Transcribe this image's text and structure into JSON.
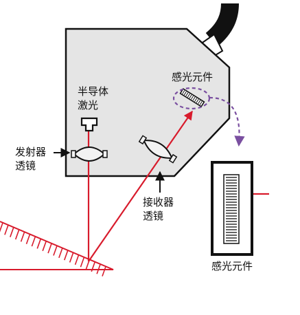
{
  "labels": {
    "semiconductor_laser_line1": "半导体",
    "semiconductor_laser_line2": "激光",
    "emitter_lens_line1": "发射器",
    "emitter_lens_line2": "透镜",
    "receiver_lens_line1": "接收器",
    "receiver_lens_line2": "透镜",
    "photosensor_top": "感光元件",
    "photosensor_detail": "感光元件"
  },
  "colors": {
    "laser_beam": "#d81b2c",
    "outline": "#111111",
    "housing_fill": "#e5e5e5",
    "lens_fill": "#f2f2f2",
    "highlight_dash": "#7a4fa0"
  },
  "icons": {
    "cable": "cable-icon",
    "laser_diode": "laser-diode-icon"
  }
}
